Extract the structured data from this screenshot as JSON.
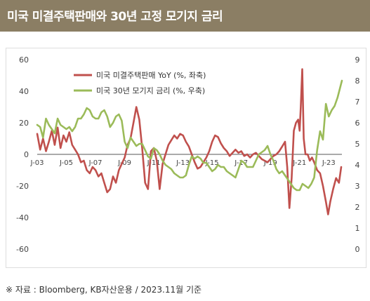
{
  "header": {
    "title": "미국 미결주택판매와 30년 고정 모기지 금리"
  },
  "source": "※ 자료 : Bloomberg, KB자산운용 / 2023.11월 기준",
  "colors": {
    "header_bg": "#8b7e64",
    "pending_sales": "#c0504d",
    "mortgage_rate": "#9bbb59"
  },
  "chart_data": {
    "type": "line",
    "x_labels": [
      "J-03",
      "J-05",
      "J-07",
      "J-09",
      "J-11",
      "J-13",
      "J-15",
      "J-17",
      "J-19",
      "J-21",
      "J-23"
    ],
    "x_range": [
      2003,
      2023.9
    ],
    "y_left": {
      "min": -60,
      "max": 60,
      "ticks": [
        -60,
        -40,
        -20,
        0,
        20,
        40,
        60
      ]
    },
    "y_right": {
      "min": 0,
      "max": 9,
      "ticks": [
        0,
        1,
        2,
        3,
        4,
        5,
        6,
        7,
        8,
        9
      ]
    },
    "grid": false,
    "legend_position": "top-left",
    "series": [
      {
        "name": "미국 미결주택판매 YoY (%, 좌축)",
        "axis": "left",
        "color": "#c0504d",
        "points": [
          [
            2003.0,
            13
          ],
          [
            2003.2,
            3
          ],
          [
            2003.4,
            10
          ],
          [
            2003.6,
            2
          ],
          [
            2003.8,
            8
          ],
          [
            2004.0,
            15
          ],
          [
            2004.2,
            6
          ],
          [
            2004.4,
            17
          ],
          [
            2004.6,
            4
          ],
          [
            2004.8,
            12
          ],
          [
            2005.0,
            8
          ],
          [
            2005.2,
            14
          ],
          [
            2005.4,
            6
          ],
          [
            2005.6,
            3
          ],
          [
            2005.8,
            0
          ],
          [
            2006.0,
            -5
          ],
          [
            2006.2,
            -4
          ],
          [
            2006.4,
            -10
          ],
          [
            2006.6,
            -12
          ],
          [
            2006.8,
            -8
          ],
          [
            2007.0,
            -10
          ],
          [
            2007.2,
            -14
          ],
          [
            2007.4,
            -12
          ],
          [
            2007.6,
            -18
          ],
          [
            2007.8,
            -24
          ],
          [
            2008.0,
            -22
          ],
          [
            2008.2,
            -14
          ],
          [
            2008.4,
            -18
          ],
          [
            2008.6,
            -10
          ],
          [
            2008.8,
            -6
          ],
          [
            2009.0,
            -2
          ],
          [
            2009.2,
            6
          ],
          [
            2009.4,
            10
          ],
          [
            2009.6,
            20
          ],
          [
            2009.8,
            30
          ],
          [
            2010.0,
            22
          ],
          [
            2010.2,
            4
          ],
          [
            2010.4,
            -18
          ],
          [
            2010.6,
            -22
          ],
          [
            2010.8,
            2
          ],
          [
            2011.0,
            4
          ],
          [
            2011.2,
            -4
          ],
          [
            2011.4,
            -22
          ],
          [
            2011.6,
            -6
          ],
          [
            2011.8,
            0
          ],
          [
            2012.0,
            6
          ],
          [
            2012.2,
            9
          ],
          [
            2012.4,
            12
          ],
          [
            2012.6,
            10
          ],
          [
            2012.8,
            13
          ],
          [
            2013.0,
            12
          ],
          [
            2013.2,
            8
          ],
          [
            2013.4,
            5
          ],
          [
            2013.6,
            0
          ],
          [
            2013.8,
            -5
          ],
          [
            2014.0,
            -9
          ],
          [
            2014.2,
            -8
          ],
          [
            2014.4,
            -5
          ],
          [
            2014.6,
            -2
          ],
          [
            2014.8,
            2
          ],
          [
            2015.0,
            8
          ],
          [
            2015.2,
            12
          ],
          [
            2015.4,
            11
          ],
          [
            2015.6,
            7
          ],
          [
            2015.8,
            4
          ],
          [
            2016.0,
            2
          ],
          [
            2016.2,
            -1
          ],
          [
            2016.4,
            1
          ],
          [
            2016.6,
            3
          ],
          [
            2016.8,
            1
          ],
          [
            2017.0,
            2
          ],
          [
            2017.2,
            -1
          ],
          [
            2017.4,
            0
          ],
          [
            2017.6,
            -2
          ],
          [
            2017.8,
            0
          ],
          [
            2018.0,
            1
          ],
          [
            2018.2,
            -1
          ],
          [
            2018.4,
            -3
          ],
          [
            2018.6,
            -4
          ],
          [
            2018.8,
            -5
          ],
          [
            2019.0,
            -3
          ],
          [
            2019.2,
            -1
          ],
          [
            2019.4,
            0
          ],
          [
            2019.6,
            2
          ],
          [
            2019.8,
            5
          ],
          [
            2020.0,
            8
          ],
          [
            2020.15,
            -8
          ],
          [
            2020.3,
            -34
          ],
          [
            2020.45,
            -15
          ],
          [
            2020.6,
            15
          ],
          [
            2020.75,
            20
          ],
          [
            2020.9,
            22
          ],
          [
            2021.0,
            15
          ],
          [
            2021.08,
            30
          ],
          [
            2021.18,
            54
          ],
          [
            2021.28,
            10
          ],
          [
            2021.4,
            0
          ],
          [
            2021.55,
            0
          ],
          [
            2021.7,
            -4
          ],
          [
            2021.85,
            -2
          ],
          [
            2022.0,
            -5
          ],
          [
            2022.2,
            -10
          ],
          [
            2022.4,
            -12
          ],
          [
            2022.6,
            -20
          ],
          [
            2022.8,
            -30
          ],
          [
            2022.95,
            -38
          ],
          [
            2023.1,
            -30
          ],
          [
            2023.3,
            -22
          ],
          [
            2023.5,
            -15
          ],
          [
            2023.7,
            -18
          ],
          [
            2023.85,
            -8
          ]
        ]
      },
      {
        "name": "미국 30년 모기지 금리 (%, 우축)",
        "axis": "right",
        "color": "#9bbb59",
        "points": [
          [
            2003.0,
            5.9
          ],
          [
            2003.2,
            5.8
          ],
          [
            2003.4,
            5.3
          ],
          [
            2003.6,
            6.2
          ],
          [
            2003.8,
            5.9
          ],
          [
            2004.0,
            5.7
          ],
          [
            2004.2,
            5.5
          ],
          [
            2004.4,
            6.2
          ],
          [
            2004.6,
            5.9
          ],
          [
            2004.8,
            5.8
          ],
          [
            2005.0,
            5.7
          ],
          [
            2005.2,
            5.8
          ],
          [
            2005.4,
            5.6
          ],
          [
            2005.6,
            5.8
          ],
          [
            2005.8,
            6.2
          ],
          [
            2006.0,
            6.2
          ],
          [
            2006.2,
            6.4
          ],
          [
            2006.4,
            6.7
          ],
          [
            2006.6,
            6.6
          ],
          [
            2006.8,
            6.3
          ],
          [
            2007.0,
            6.2
          ],
          [
            2007.2,
            6.2
          ],
          [
            2007.4,
            6.5
          ],
          [
            2007.6,
            6.6
          ],
          [
            2007.8,
            6.3
          ],
          [
            2008.0,
            5.8
          ],
          [
            2008.2,
            6.0
          ],
          [
            2008.4,
            6.3
          ],
          [
            2008.6,
            6.4
          ],
          [
            2008.8,
            6.1
          ],
          [
            2009.0,
            5.1
          ],
          [
            2009.2,
            4.8
          ],
          [
            2009.4,
            5.3
          ],
          [
            2009.6,
            5.1
          ],
          [
            2009.8,
            4.9
          ],
          [
            2010.0,
            5.0
          ],
          [
            2010.2,
            5.0
          ],
          [
            2010.4,
            4.7
          ],
          [
            2010.6,
            4.4
          ],
          [
            2010.8,
            4.3
          ],
          [
            2011.0,
            4.8
          ],
          [
            2011.2,
            4.7
          ],
          [
            2011.4,
            4.5
          ],
          [
            2011.6,
            4.2
          ],
          [
            2011.8,
            4.0
          ],
          [
            2012.0,
            3.9
          ],
          [
            2012.2,
            3.8
          ],
          [
            2012.4,
            3.6
          ],
          [
            2012.6,
            3.5
          ],
          [
            2012.8,
            3.4
          ],
          [
            2013.0,
            3.4
          ],
          [
            2013.2,
            3.5
          ],
          [
            2013.4,
            4.0
          ],
          [
            2013.6,
            4.4
          ],
          [
            2013.8,
            4.3
          ],
          [
            2014.0,
            4.4
          ],
          [
            2014.2,
            4.3
          ],
          [
            2014.4,
            4.1
          ],
          [
            2014.6,
            4.1
          ],
          [
            2014.8,
            3.9
          ],
          [
            2015.0,
            3.7
          ],
          [
            2015.2,
            3.8
          ],
          [
            2015.4,
            4.0
          ],
          [
            2015.6,
            3.9
          ],
          [
            2015.8,
            3.9
          ],
          [
            2016.0,
            3.7
          ],
          [
            2016.2,
            3.6
          ],
          [
            2016.4,
            3.5
          ],
          [
            2016.6,
            3.4
          ],
          [
            2016.8,
            3.8
          ],
          [
            2017.0,
            4.2
          ],
          [
            2017.2,
            4.1
          ],
          [
            2017.4,
            3.9
          ],
          [
            2017.6,
            3.9
          ],
          [
            2017.8,
            3.9
          ],
          [
            2018.0,
            4.2
          ],
          [
            2018.2,
            4.5
          ],
          [
            2018.4,
            4.6
          ],
          [
            2018.6,
            4.7
          ],
          [
            2018.8,
            4.9
          ],
          [
            2019.0,
            4.5
          ],
          [
            2019.2,
            4.2
          ],
          [
            2019.4,
            3.8
          ],
          [
            2019.6,
            3.6
          ],
          [
            2019.8,
            3.7
          ],
          [
            2020.0,
            3.5
          ],
          [
            2020.2,
            3.3
          ],
          [
            2020.4,
            3.1
          ],
          [
            2020.6,
            2.9
          ],
          [
            2020.8,
            2.8
          ],
          [
            2021.0,
            2.8
          ],
          [
            2021.2,
            3.1
          ],
          [
            2021.4,
            3.0
          ],
          [
            2021.6,
            2.9
          ],
          [
            2021.8,
            3.1
          ],
          [
            2022.0,
            3.4
          ],
          [
            2022.2,
            4.7
          ],
          [
            2022.4,
            5.6
          ],
          [
            2022.6,
            5.2
          ],
          [
            2022.8,
            6.9
          ],
          [
            2023.0,
            6.3
          ],
          [
            2023.2,
            6.6
          ],
          [
            2023.4,
            6.8
          ],
          [
            2023.6,
            7.2
          ],
          [
            2023.75,
            7.6
          ],
          [
            2023.9,
            8.0
          ]
        ]
      }
    ]
  }
}
